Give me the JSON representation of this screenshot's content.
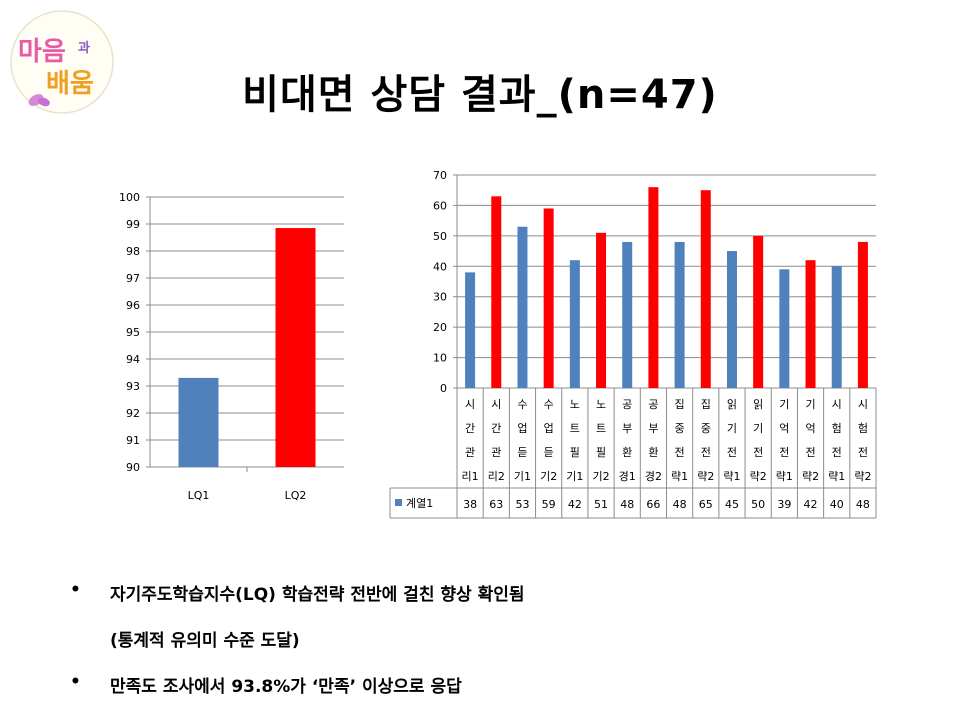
{
  "title": "비대면 상담 결과_(n=47)",
  "logo": {
    "line1": "마음",
    "small": "과",
    "line2": "배움"
  },
  "chart_left": {
    "type": "bar",
    "categories": [
      "LQ1",
      "LQ2"
    ],
    "values": [
      93.3,
      98.85
    ],
    "colors": [
      "#4f81bd",
      "#ff0000"
    ],
    "ylim": [
      90,
      100
    ],
    "yticks": [
      90,
      91,
      92,
      93,
      94,
      95,
      96,
      97,
      98,
      99,
      100
    ],
    "grid": true
  },
  "chart_right": {
    "type": "bar",
    "categories": [
      [
        "시",
        "간",
        "관",
        "리1"
      ],
      [
        "시",
        "간",
        "관",
        "리2"
      ],
      [
        "수",
        "업",
        "듣",
        "기1"
      ],
      [
        "수",
        "업",
        "듣",
        "기2"
      ],
      [
        "노",
        "트",
        "필",
        "기1"
      ],
      [
        "노",
        "트",
        "필",
        "기2"
      ],
      [
        "공",
        "부",
        "환",
        "경1"
      ],
      [
        "공",
        "부",
        "환",
        "경2"
      ],
      [
        "집",
        "중",
        "전",
        "략1"
      ],
      [
        "집",
        "중",
        "전",
        "략2"
      ],
      [
        "읽",
        "기",
        "전",
        "략1"
      ],
      [
        "읽",
        "기",
        "전",
        "략2"
      ],
      [
        "기",
        "억",
        "전",
        "략1"
      ],
      [
        "기",
        "억",
        "전",
        "략2"
      ],
      [
        "시",
        "험",
        "전",
        "략1"
      ],
      [
        "시",
        "험",
        "전",
        "략2"
      ]
    ],
    "series": [
      {
        "name": "계열1",
        "values": [
          38,
          63,
          53,
          59,
          42,
          51,
          48,
          66,
          48,
          65,
          45,
          50,
          39,
          42,
          40,
          48
        ]
      }
    ],
    "colors": [
      "#4f81bd",
      "#ff0000"
    ],
    "ylim": [
      0,
      70
    ],
    "yticks": [
      0,
      10,
      20,
      30,
      40,
      50,
      60,
      70
    ],
    "grid": true,
    "data_table": true
  },
  "chart_data": [
    {
      "type": "bar",
      "categories": [
        "LQ1",
        "LQ2"
      ],
      "values": [
        93.3,
        98.85
      ],
      "ylim": [
        90,
        100
      ]
    },
    {
      "type": "bar",
      "categories": [
        "시간관리1",
        "시간관리2",
        "수업듣기1",
        "수업듣기2",
        "노트필기1",
        "노트필기2",
        "공부환경1",
        "공부환경2",
        "집중전략1",
        "집중전략2",
        "읽기전략1",
        "읽기전략2",
        "기억전략1",
        "기억전략2",
        "시험전략1",
        "시험전략2"
      ],
      "series": [
        {
          "name": "계열1",
          "values": [
            38,
            63,
            53,
            59,
            42,
            51,
            48,
            66,
            48,
            65,
            45,
            50,
            39,
            42,
            40,
            48
          ]
        }
      ],
      "ylim": [
        0,
        70
      ]
    }
  ],
  "bullets": [
    {
      "dot": "•",
      "text": "자기주도학습지수(LQ) 학습전략 전반에 걸친 향상 확인됨"
    },
    {
      "dot": "",
      "text": "(통계적 유의미 수준 도달)"
    },
    {
      "dot": "•",
      "text": "만족도 조사에서 93.8%가 ‘만족’ 이상으로 응답"
    }
  ]
}
